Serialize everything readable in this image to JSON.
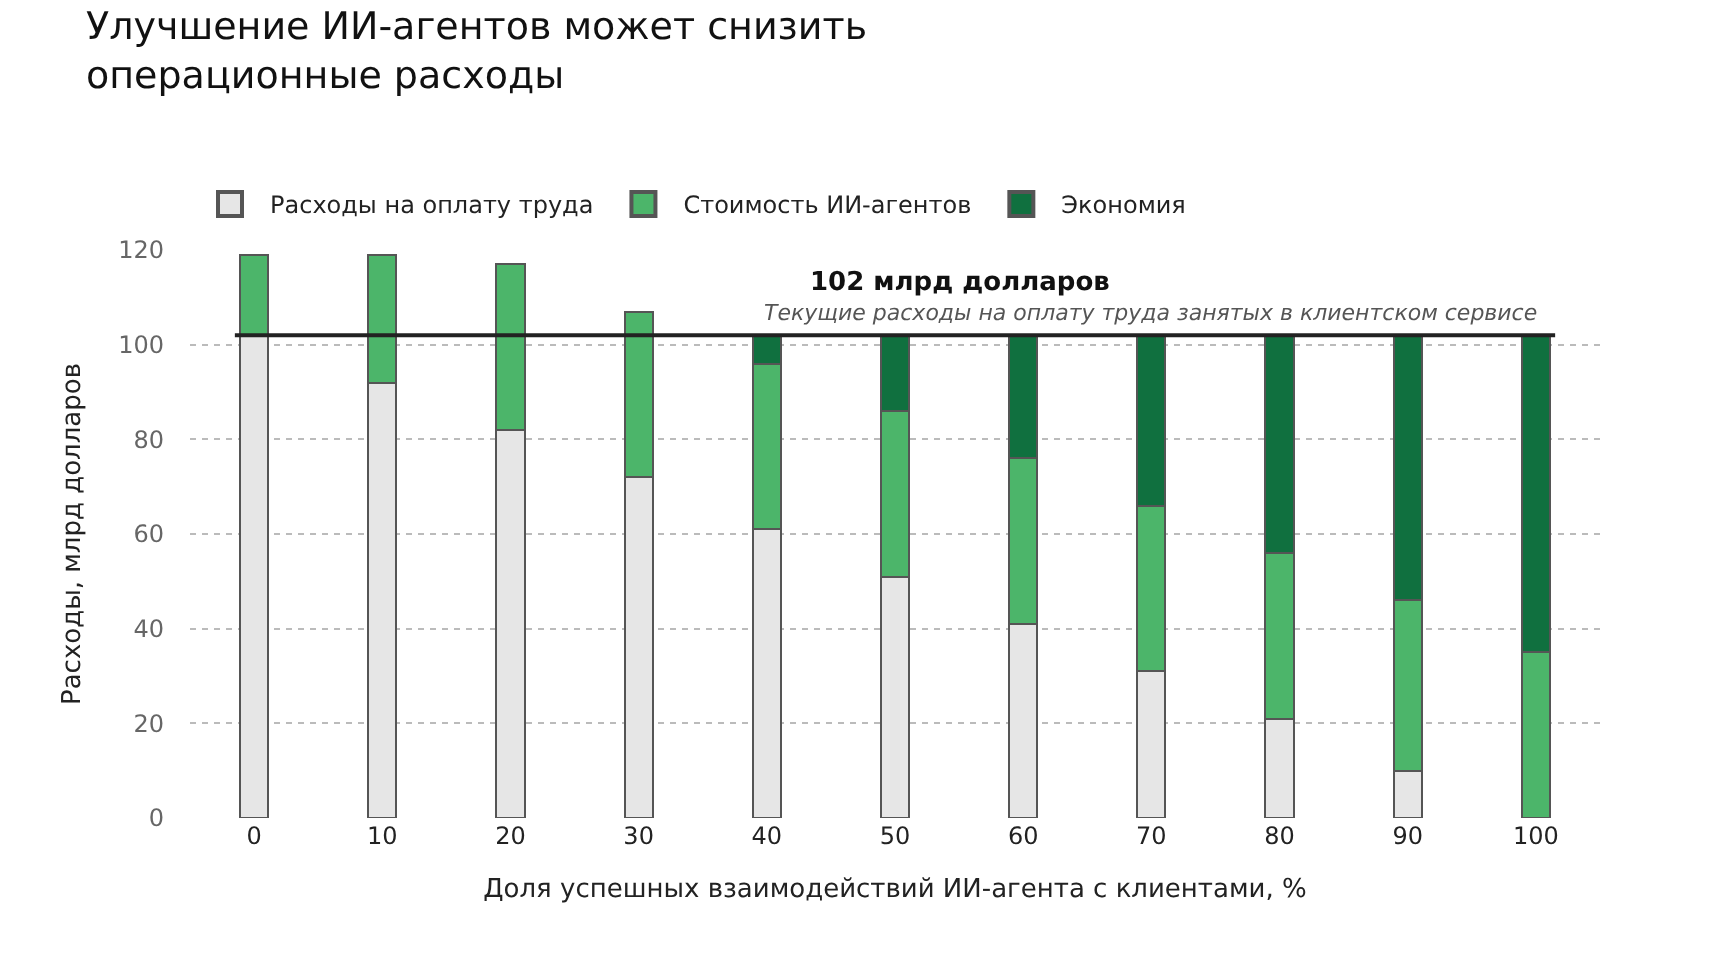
{
  "chart_data": {
    "type": "bar",
    "stacked": true,
    "title": "Улучшение ИИ-агентов может снизить\nоперационные расходы",
    "xlabel": "Доля успешных взаимодействий ИИ-агента с клиентами, %",
    "ylabel": "Расходы, млрд долларов",
    "categories": [
      "0",
      "10",
      "20",
      "30",
      "40",
      "50",
      "60",
      "70",
      "80",
      "90",
      "100"
    ],
    "series": [
      {
        "name": "Расходы на оплату труда",
        "color": "#e6e6e6",
        "values": [
          102,
          92,
          82,
          72,
          61,
          51,
          41,
          31,
          21,
          10,
          0
        ]
      },
      {
        "name": "Стоимость ИИ-агентов",
        "color": "#4cb56a",
        "values": [
          17,
          27,
          35,
          35,
          35,
          35,
          35,
          35,
          35,
          36,
          35
        ]
      },
      {
        "name": "Экономия",
        "color": "#10703f",
        "values": [
          null,
          null,
          null,
          null,
          6,
          16,
          26,
          36,
          46,
          56,
          67
        ]
      }
    ],
    "ylim": [
      0,
      120
    ],
    "yticks": [
      0,
      20,
      40,
      60,
      80,
      100,
      120
    ],
    "grid": "y",
    "legend": "top left",
    "ref_lines": [
      {
        "axis": "y",
        "value": 102,
        "label": "102 млрд долларов",
        "color": "#222222"
      }
    ],
    "annotations": [
      {
        "text": "Текущие расходы на оплату труда занятых в клиентском сервисе",
        "x": "70",
        "y": 102
      }
    ]
  }
}
